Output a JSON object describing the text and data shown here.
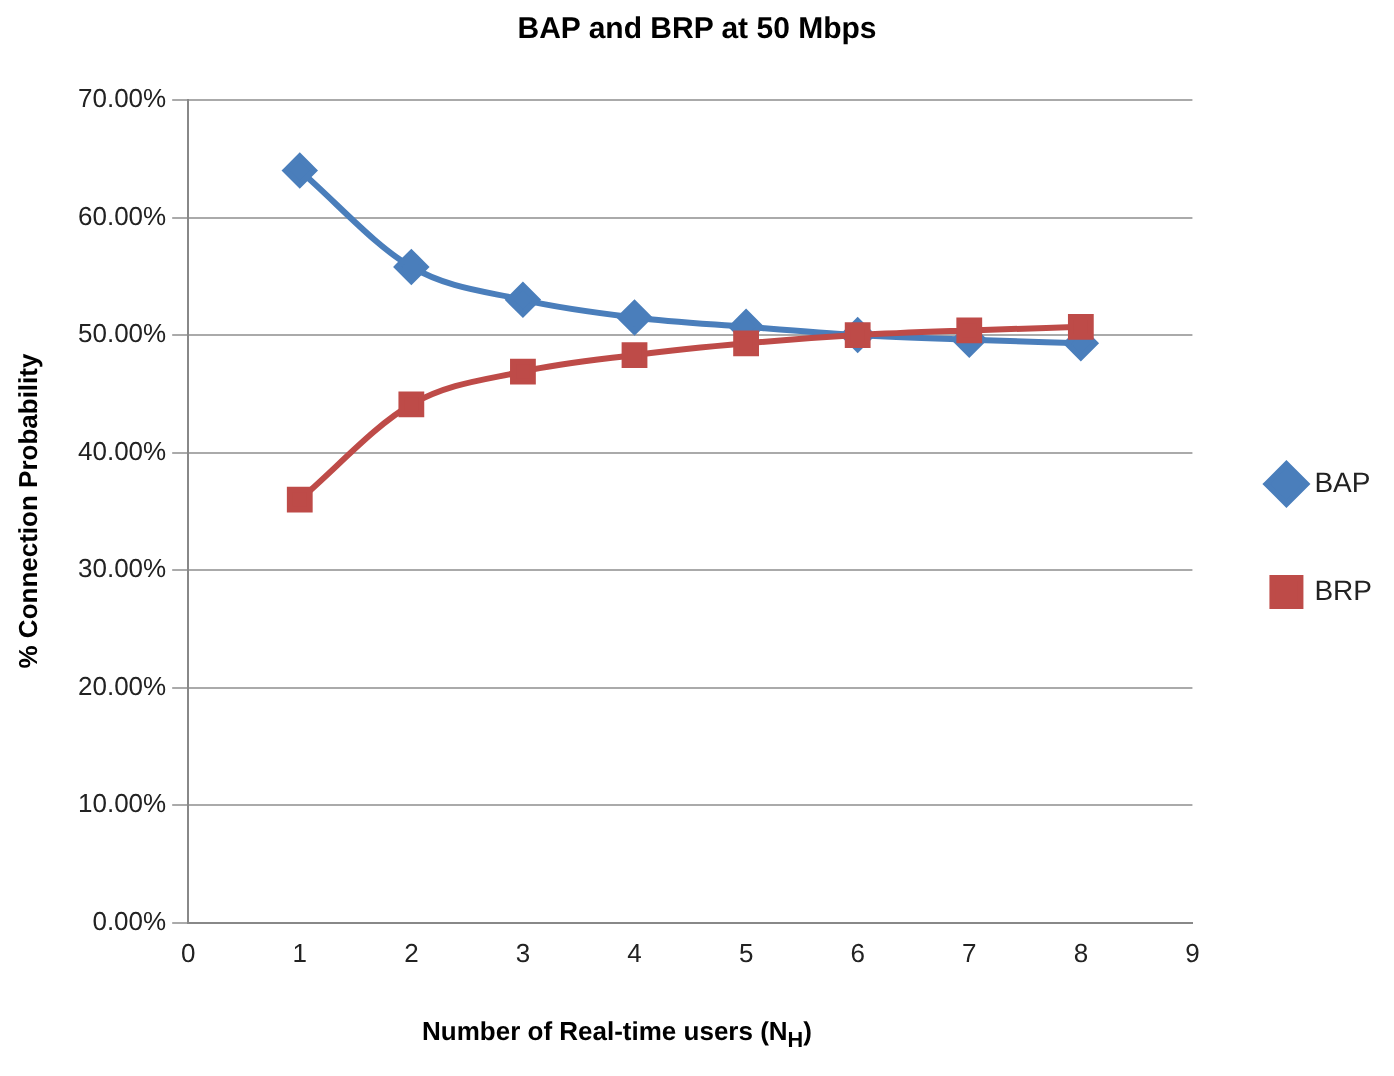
{
  "chart_data": {
    "type": "line",
    "title": "BAP and BRP at 50 Mbps",
    "xlabel": "Number of Real-time users (N$_{H}$)",
    "ylabel": "% Connection Probability",
    "x": [
      1,
      2,
      3,
      4,
      5,
      6,
      7,
      8
    ],
    "series": [
      {
        "name": "BAP",
        "color": "#4a7ebb",
        "marker": "diamond",
        "values": [
          64.0,
          55.8,
          53.0,
          51.5,
          50.7,
          50.0,
          49.6,
          49.3
        ]
      },
      {
        "name": "BRP",
        "color": "#be4b48",
        "marker": "square",
        "values": [
          36.0,
          44.1,
          46.9,
          48.3,
          49.3,
          50.0,
          50.4,
          50.7
        ]
      }
    ],
    "xlim": [
      0,
      9
    ],
    "xticks": [
      0,
      1,
      2,
      3,
      4,
      5,
      6,
      7,
      8,
      9
    ],
    "ylim": [
      0,
      70
    ],
    "yticks": [
      {
        "value": 0,
        "label": "0.00%"
      },
      {
        "value": 10,
        "label": "10.00%"
      },
      {
        "value": 20,
        "label": "20.00%"
      },
      {
        "value": 30,
        "label": "30.00%"
      },
      {
        "value": 40,
        "label": "40.00%"
      },
      {
        "value": 50,
        "label": "50.00%"
      },
      {
        "value": 60,
        "label": "60.00%"
      },
      {
        "value": 70,
        "label": "70.00%"
      }
    ],
    "grid": "y",
    "legend": "right"
  }
}
